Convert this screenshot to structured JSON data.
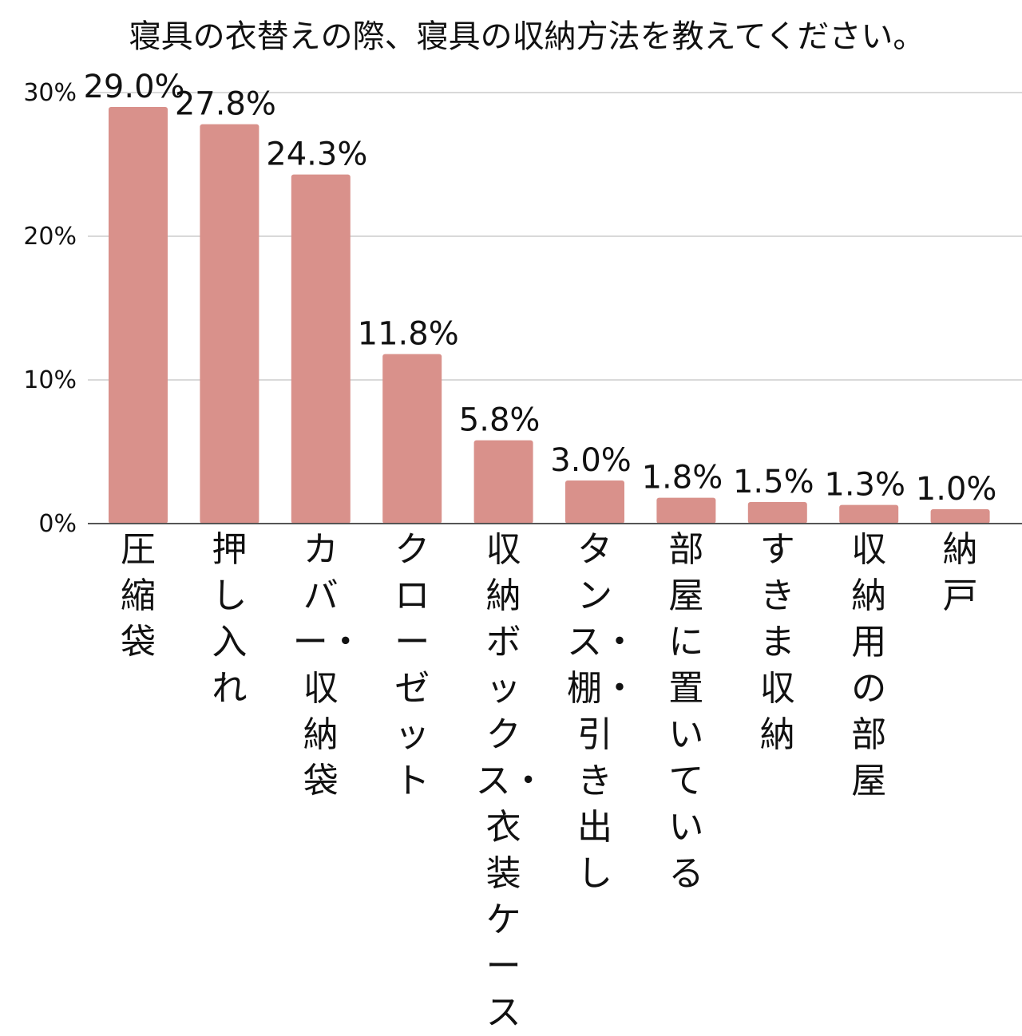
{
  "chart_data": {
    "type": "bar",
    "title": "寝具の衣替えの際、寝具の収納方法を教えてください。",
    "xlabel": "",
    "ylabel": "",
    "categories": [
      "圧縮袋",
      "押し入れ",
      "カバー・収納袋",
      "クローゼット",
      "収納ボックス・衣装ケース",
      "タンス・棚・引き出し",
      "部屋に置いている",
      "すきま収納",
      "収納用の部屋",
      "納戸"
    ],
    "values": [
      29.0,
      27.8,
      24.3,
      11.8,
      5.8,
      3.0,
      1.8,
      1.5,
      1.3,
      1.0
    ],
    "value_labels": [
      "29.0%",
      "27.8%",
      "24.3%",
      "11.8%",
      "5.8%",
      "3.0%",
      "1.8%",
      "1.5%",
      "1.3%",
      "1.0%"
    ],
    "yticks": [
      0,
      10,
      20,
      30
    ],
    "ytick_labels": [
      "0%",
      "10%",
      "20%",
      "30%"
    ],
    "ylim": [
      0,
      30
    ],
    "grid": true,
    "legend": "none",
    "colors": {
      "bar": "#d9918b",
      "grid": "#d9d9d9",
      "axis": "#555555",
      "text": "#111111"
    }
  }
}
